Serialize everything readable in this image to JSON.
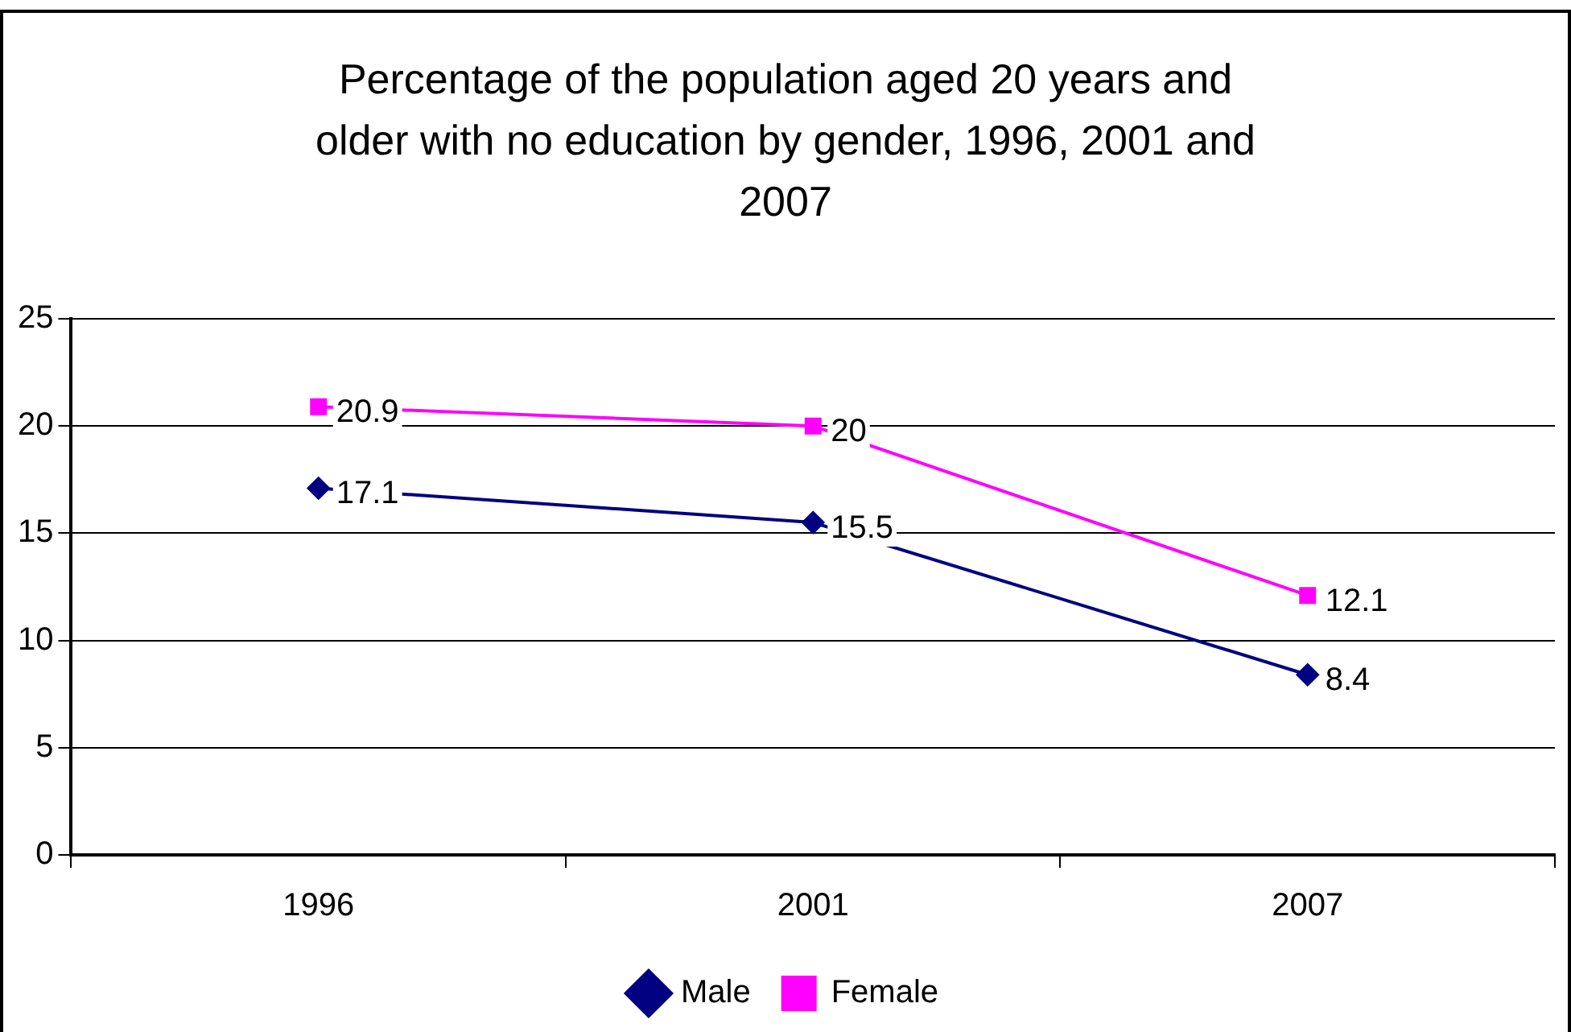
{
  "chart_data": {
    "type": "line",
    "title": "Percentage of the population aged 20 years and older with no education by gender, 1996, 2001 and 2007",
    "categories": [
      "1996",
      "2001",
      "2007"
    ],
    "series": [
      {
        "name": "Male",
        "color": "#000080",
        "marker": "diamond",
        "values": [
          17.1,
          15.5,
          8.4
        ]
      },
      {
        "name": "Female",
        "color": "#ff00ff",
        "marker": "square",
        "values": [
          20.9,
          20,
          12.1
        ]
      }
    ],
    "ylim": [
      0,
      25
    ],
    "yticks": [
      0,
      5,
      10,
      15,
      20,
      25
    ],
    "grid": "y",
    "legend": "bottom",
    "data_labels": true,
    "line_style": "solid"
  }
}
